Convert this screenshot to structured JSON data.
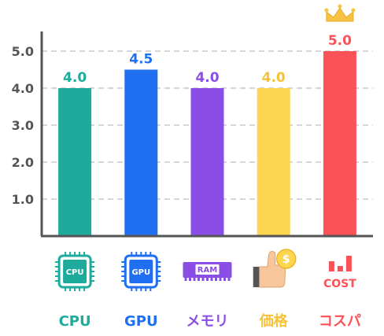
{
  "chart_data": {
    "type": "bar",
    "categories": [
      "CPU",
      "GPU",
      "メモリ",
      "価格",
      "コスパ"
    ],
    "values": [
      4.0,
      4.5,
      4.0,
      4.0,
      5.0
    ],
    "value_labels": [
      "4.0",
      "4.5",
      "4.0",
      "4.0",
      "5.0"
    ],
    "colors": [
      "#1fab9c",
      "#1f6ff0",
      "#8a4de6",
      "#fbd64e",
      "#fb5257"
    ],
    "label_colors": [
      "#1fab9c",
      "#1f6ff0",
      "#8a4de6",
      "#f5c23a",
      "#fb5257"
    ],
    "icons": [
      "cpu-chip-icon",
      "gpu-chip-icon",
      "ram-module-icon",
      "thumbs-up-coin-icon",
      "cost-chart-icon"
    ],
    "icon_texts": [
      "CPU",
      "GPU",
      "RAM",
      "$",
      "COST"
    ],
    "crown_icon": "crown-icon",
    "y_ticks": [
      1.0,
      2.0,
      3.0,
      4.0,
      5.0
    ],
    "y_tick_labels": [
      "1.0",
      "2.0",
      "3.0",
      "4.0",
      "5.0"
    ],
    "ylim": [
      0,
      5.5
    ],
    "grid": true,
    "grid_style": "dashed",
    "title": "",
    "xlabel": "",
    "ylabel": ""
  }
}
